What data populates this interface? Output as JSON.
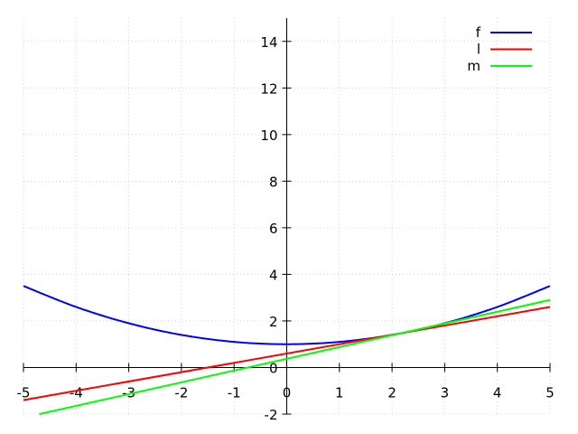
{
  "chart_data": {
    "type": "line",
    "title": "",
    "xlabel": "",
    "ylabel": "",
    "xlim": [
      -5,
      5
    ],
    "ylim": [
      -2,
      15
    ],
    "grid": true,
    "legend_position": "top-right",
    "x_ticks": [
      -5,
      -4,
      -3,
      -2,
      -1,
      0,
      1,
      2,
      3,
      4,
      5
    ],
    "x_tick_labels": [
      "-5",
      "-4",
      "-3",
      "-2",
      "-1",
      "0",
      "1",
      "2",
      "3",
      "4",
      "5"
    ],
    "y_ticks": [
      -2,
      0,
      2,
      4,
      6,
      8,
      10,
      12,
      14
    ],
    "y_tick_labels": [
      "-2",
      "0",
      "2",
      "4",
      "6",
      "8",
      "10",
      "12",
      "14"
    ],
    "series": [
      {
        "name": "f",
        "color": "#0000ff",
        "x": [
          -5,
          -4,
          -3,
          -2,
          -1,
          0,
          1,
          2,
          3,
          4,
          5
        ],
        "y": [
          3.5,
          2.6,
          1.9,
          1.4,
          1.1,
          1.0,
          1.1,
          1.4,
          1.9,
          2.6,
          3.5
        ]
      },
      {
        "name": "l",
        "color": "#ff0000",
        "x": [
          -5,
          5
        ],
        "y": [
          -1.4,
          2.6
        ]
      },
      {
        "name": "m",
        "color": "#00ff00",
        "x": [
          -4.7,
          5
        ],
        "y": [
          -2.0,
          2.9
        ]
      }
    ]
  }
}
